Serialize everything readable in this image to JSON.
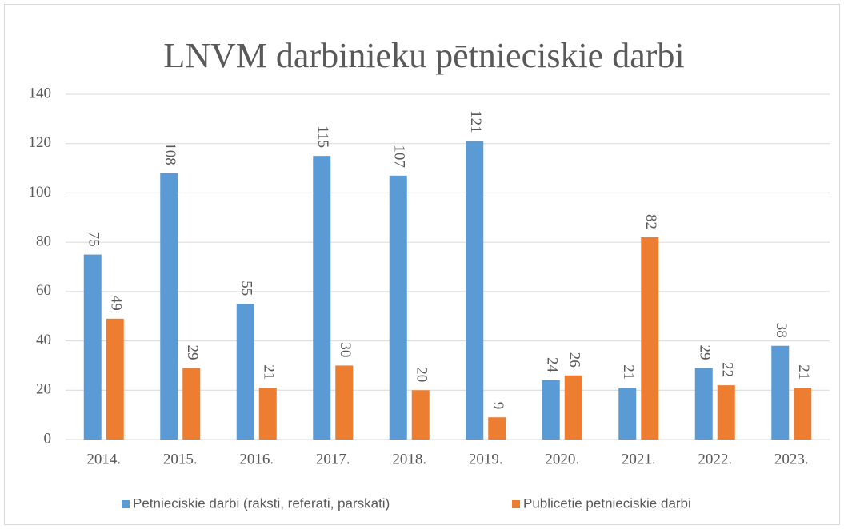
{
  "chart_data": {
    "type": "bar",
    "title": "LNVM darbinieku pētnieciskie darbi",
    "categories": [
      "2014.",
      "2015.",
      "2016.",
      "2017.",
      "2018.",
      "2019.",
      "2020.",
      "2021.",
      "2022.",
      "2023."
    ],
    "series": [
      {
        "name": "Pētnieciskie darbi (raksti, referāti, pārskati)",
        "color": "#5b9bd5",
        "values": [
          75,
          108,
          55,
          115,
          107,
          121,
          24,
          21,
          29,
          38
        ]
      },
      {
        "name": "Publicētie pētnieciskie darbi",
        "color": "#ed7d31",
        "values": [
          49,
          29,
          21,
          30,
          20,
          9,
          26,
          82,
          22,
          21
        ]
      }
    ],
    "ylim": [
      0,
      140
    ],
    "yticks": [
      0,
      20,
      40,
      60,
      80,
      100,
      120,
      140
    ],
    "grid": true,
    "legend": "bottom"
  }
}
